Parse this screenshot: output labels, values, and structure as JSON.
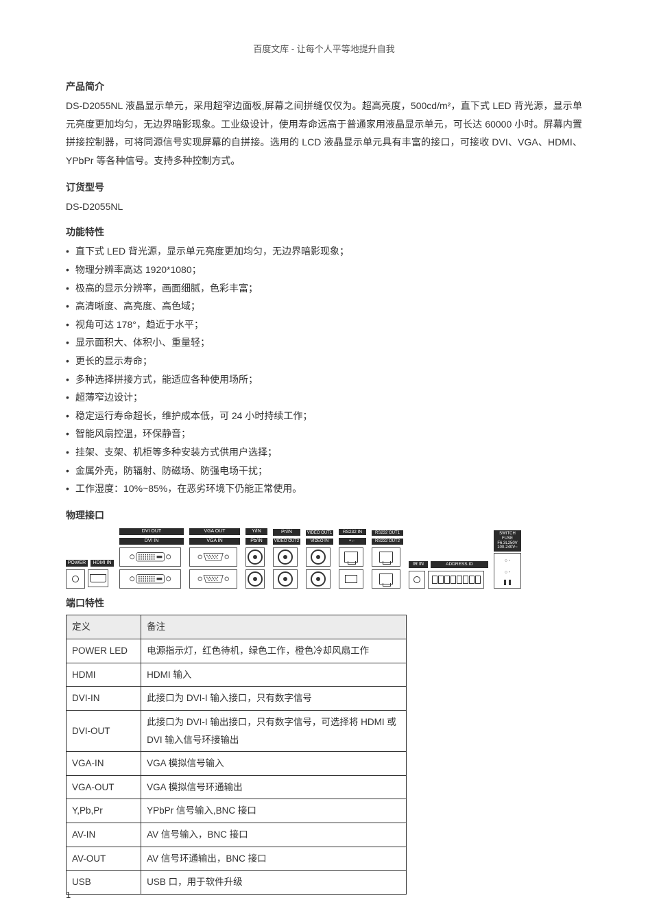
{
  "header": "百度文库 - 让每个人平等地提升自我",
  "sections": {
    "intro_title": "产品简介",
    "intro_body": "DS-D2055NL 液晶显示单元，采用超窄边面板,屏幕之间拼缝仅仅为。超高亮度，500cd/m²，直下式 LED 背光源，显示单元亮度更加均匀，无边界暗影现象。工业级设计，使用寿命远高于普通家用液晶显示单元，可长达 60000 小时。屏幕内置拼接控制器，可将同源信号实现屏幕的自拼接。选用的 LCD 液晶显示单元具有丰富的接口，可接收 DVI、VGA、HDMI、YPbPr 等各种信号。支持多种控制方式。",
    "order_title": "订货型号",
    "order_model": "DS-D2055NL",
    "features_title": "功能特性",
    "interfaces_title": "物理接口",
    "port_table_title": "端口特性"
  },
  "features": [
    "直下式 LED 背光源，显示单元亮度更加均匀，无边界暗影现象；",
    "物理分辨率高达 1920*1080；",
    "极高的显示分辨率，画面细腻，色彩丰富；",
    "高清晰度、高亮度、高色域；",
    "视角可达 178°，趋近于水平；",
    "显示面积大、体积小、重量轻；",
    "更长的显示寿命；",
    "多种选择拼接方式，能适应各种使用场所；",
    "超薄窄边设计；",
    "稳定运行寿命超长，维护成本低，可 24 小时持续工作；",
    "智能风扇控温，环保静音；",
    "挂架、支架、机柜等多种安装方式供用户选择；",
    "金属外壳，防辐射、防磁场、防强电场干扰；",
    "工作湿度：10%~85%，在恶劣环境下仍能正常使用。"
  ],
  "connector_labels": {
    "power": "POWER",
    "hdmi_in": "HDMI IN",
    "dvi_out": "DVI OUT",
    "dvi_in": "DVI IN",
    "vga_out": "VGA OUT",
    "vga_in": "VGA IN",
    "y_in": "Y/IN",
    "pb_in": "Pb/IN",
    "pr_in": "Pr/IN",
    "video_out1": "VIDEO OUT1",
    "video_out2": "VIDEO OUT2",
    "video_in": "VIDEO IN",
    "rs232_in": "RS232 IN",
    "rs232_out1": "RS232 OUT1",
    "rs232_out2": "RS232 OUT2",
    "usb_sym": "•←",
    "ir_in": "IR IN",
    "address_id": "ADDRESS ID",
    "switch": "SWITCH",
    "fuse": "FUSE\nF6.3L250V",
    "voltage": "100-240V~",
    "io1": "○ -",
    "io2": "○ -"
  },
  "port_table": {
    "columns": [
      "定义",
      "备注"
    ],
    "rows": [
      [
        "POWER LED",
        "电源指示灯，红色待机，绿色工作，橙色冷却风扇工作"
      ],
      [
        "HDMI",
        "HDMI 输入"
      ],
      [
        "DVI-IN",
        "此接口为 DVI-I  输入接口，只有数字信号"
      ],
      [
        "DVI-OUT",
        "此接口为 DVI-I  输出接口，只有数字信号，可选择将 HDMI 或 DVI 输入信号环接输出"
      ],
      [
        "VGA-IN",
        "VGA 模拟信号输入"
      ],
      [
        "VGA-OUT",
        "VGA 模拟信号环通输出"
      ],
      [
        "Y,Pb,Pr",
        "YPbPr 信号输入,BNC 接口"
      ],
      [
        "AV-IN",
        "AV  信号输入，BNC  接口"
      ],
      [
        "AV-OUT",
        "AV  信号环通输出，BNC  接口"
      ],
      [
        "USB",
        "USB  口，用于软件升级"
      ]
    ]
  },
  "page_number": "1",
  "colors": {
    "text": "#333333",
    "header_bg": "#ececec",
    "label_bg": "#2b2b2b",
    "border": "#333333"
  }
}
